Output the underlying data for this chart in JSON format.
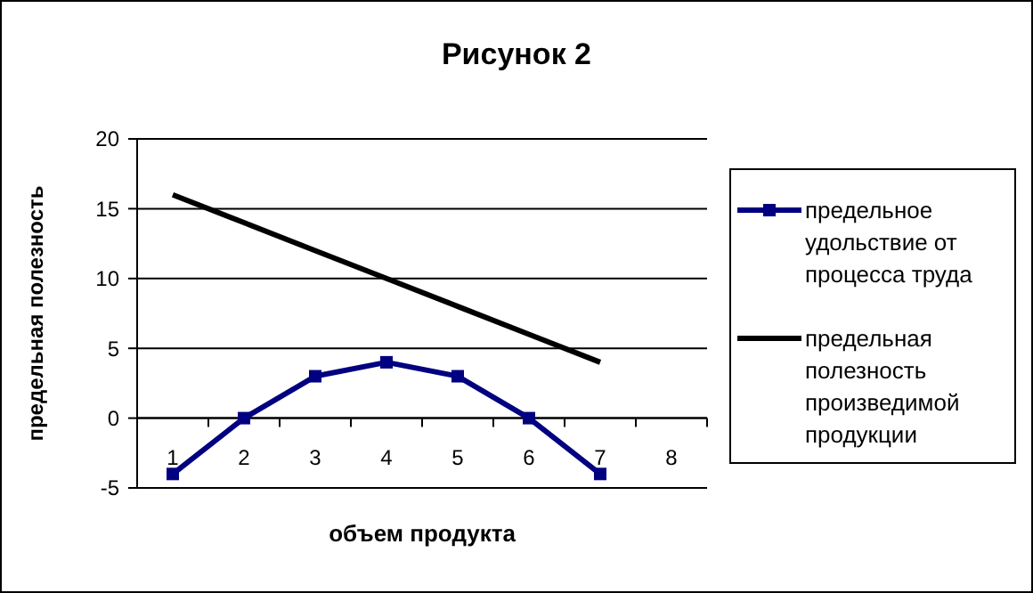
{
  "chart_data": {
    "type": "line",
    "title": "Рисунок 2",
    "xlabel": "объем продукта",
    "ylabel": "предельная полезность",
    "categories": [
      "1",
      "2",
      "3",
      "4",
      "5",
      "6",
      "7",
      "8"
    ],
    "ylim": [
      -5,
      20
    ],
    "yticks": [
      -5,
      0,
      5,
      10,
      15,
      20
    ],
    "grid": "y",
    "legend": "right",
    "series": [
      {
        "name": "предельное удольствие от процесса труда",
        "color": "#000080",
        "marker": "square",
        "values": [
          -4,
          0,
          3,
          4,
          3,
          0,
          -4,
          null
        ]
      },
      {
        "name": "предельная полезность произведимой продукции",
        "color": "#000000",
        "marker": "none",
        "values": [
          16,
          14,
          12,
          10,
          8,
          6,
          4,
          null
        ]
      }
    ]
  }
}
